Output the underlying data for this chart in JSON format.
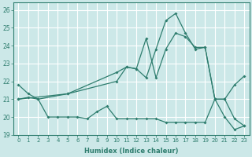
{
  "xlabel": "Humidex (Indice chaleur)",
  "xlim": [
    -0.5,
    23.5
  ],
  "ylim": [
    19,
    26.4
  ],
  "yticks": [
    19,
    20,
    21,
    22,
    23,
    24,
    25,
    26
  ],
  "xticks": [
    0,
    1,
    2,
    3,
    4,
    5,
    6,
    7,
    8,
    9,
    10,
    11,
    12,
    13,
    14,
    15,
    16,
    17,
    18,
    19,
    20,
    21,
    22,
    23
  ],
  "bg_color": "#cce8e8",
  "grid_color": "#ffffff",
  "line_color": "#2e7d6e",
  "s1_x": [
    0,
    1,
    2,
    3,
    4,
    5,
    6,
    7,
    8,
    9,
    10,
    11,
    12,
    13,
    14,
    15,
    16,
    17,
    18,
    19,
    20,
    21,
    22,
    23
  ],
  "s1_y": [
    21.8,
    21.3,
    21.0,
    20.0,
    20.0,
    20.0,
    20.0,
    19.9,
    20.3,
    20.6,
    19.9,
    19.9,
    19.9,
    19.9,
    19.9,
    19.7,
    19.7,
    19.7,
    19.7,
    19.7,
    21.0,
    20.0,
    19.3,
    19.5
  ],
  "s2_x": [
    0,
    1,
    2,
    5,
    10,
    11,
    12,
    13,
    14,
    15,
    16,
    17,
    18,
    19,
    20,
    21,
    22,
    23
  ],
  "s2_y": [
    21.0,
    21.1,
    21.0,
    21.3,
    22.5,
    22.8,
    22.7,
    22.2,
    23.8,
    25.4,
    25.8,
    24.7,
    23.8,
    23.9,
    21.0,
    21.0,
    19.9,
    19.5
  ],
  "s3_x": [
    0,
    5,
    10,
    11,
    12,
    13,
    14,
    15,
    16,
    17,
    18,
    19,
    20,
    21,
    22,
    23
  ],
  "s3_y": [
    21.0,
    21.3,
    22.0,
    22.8,
    22.7,
    24.4,
    22.2,
    23.8,
    24.7,
    24.5,
    23.9,
    23.9,
    21.0,
    21.0,
    21.8,
    22.3
  ]
}
